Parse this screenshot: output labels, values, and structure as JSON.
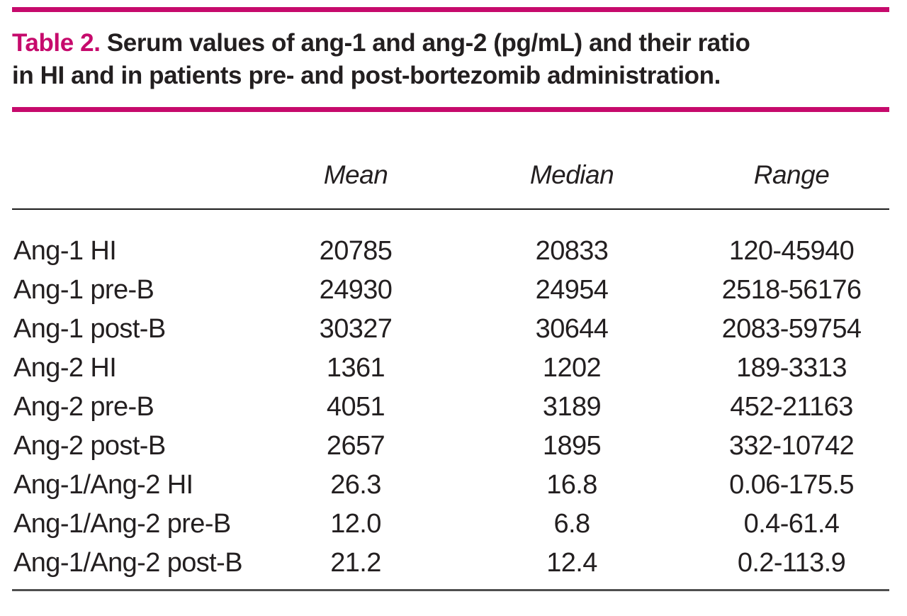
{
  "caption": {
    "label": "Table 2.",
    "title_line1": "Serum values of ang-1 and ang-2 (pg/mL) and their ratio",
    "title_line2": "in HI and in patients pre- and post-bortezomib administration."
  },
  "columns": [
    "Mean",
    "Median",
    "Range"
  ],
  "rows": [
    {
      "label": "Ang-1 HI",
      "mean": "20785",
      "median": "20833",
      "range": "120-45940"
    },
    {
      "label": "Ang-1 pre-B",
      "mean": "24930",
      "median": "24954",
      "range": "2518-56176"
    },
    {
      "label": "Ang-1 post-B",
      "mean": "30327",
      "median": "30644",
      "range": "2083-59754"
    },
    {
      "label": "Ang-2 HI",
      "mean": "1361",
      "median": "1202",
      "range": "189-3313"
    },
    {
      "label": "Ang-2 pre-B",
      "mean": "4051",
      "median": "3189",
      "range": "452-21163"
    },
    {
      "label": "Ang-2 post-B",
      "mean": "2657",
      "median": "1895",
      "range": "332-10742"
    },
    {
      "label": "Ang-1/Ang-2 HI",
      "mean": "26.3",
      "median": "16.8",
      "range": "0.06-175.5"
    },
    {
      "label": "Ang-1/Ang-2 pre-B",
      "mean": "12.0",
      "median": "6.8",
      "range": "0.4-61.4"
    },
    {
      "label": "Ang-1/Ang-2 post-B",
      "mean": "21.2",
      "median": "12.4",
      "range": "0.2-113.9"
    }
  ],
  "colors": {
    "accent": "#c60a6c",
    "text": "#231f20"
  },
  "chart_data": {
    "type": "table",
    "title": "Table 2. Serum values of ang-1 and ang-2 (pg/mL) and their ratio in HI and in patients pre- and post-bortezomib administration.",
    "columns": [
      "",
      "Mean",
      "Median",
      "Range"
    ],
    "rows": [
      [
        "Ang-1 HI",
        20785,
        20833,
        "120-45940"
      ],
      [
        "Ang-1 pre-B",
        24930,
        24954,
        "2518-56176"
      ],
      [
        "Ang-1 post-B",
        30327,
        30644,
        "2083-59754"
      ],
      [
        "Ang-2 HI",
        1361,
        1202,
        "189-3313"
      ],
      [
        "Ang-2 pre-B",
        4051,
        3189,
        "452-21163"
      ],
      [
        "Ang-2 post-B",
        2657,
        1895,
        "332-10742"
      ],
      [
        "Ang-1/Ang-2 HI",
        26.3,
        16.8,
        "0.06-175.5"
      ],
      [
        "Ang-1/Ang-2 pre-B",
        12.0,
        6.8,
        "0.4-61.4"
      ],
      [
        "Ang-1/Ang-2 post-B",
        21.2,
        12.4,
        "0.2-113.9"
      ]
    ]
  }
}
